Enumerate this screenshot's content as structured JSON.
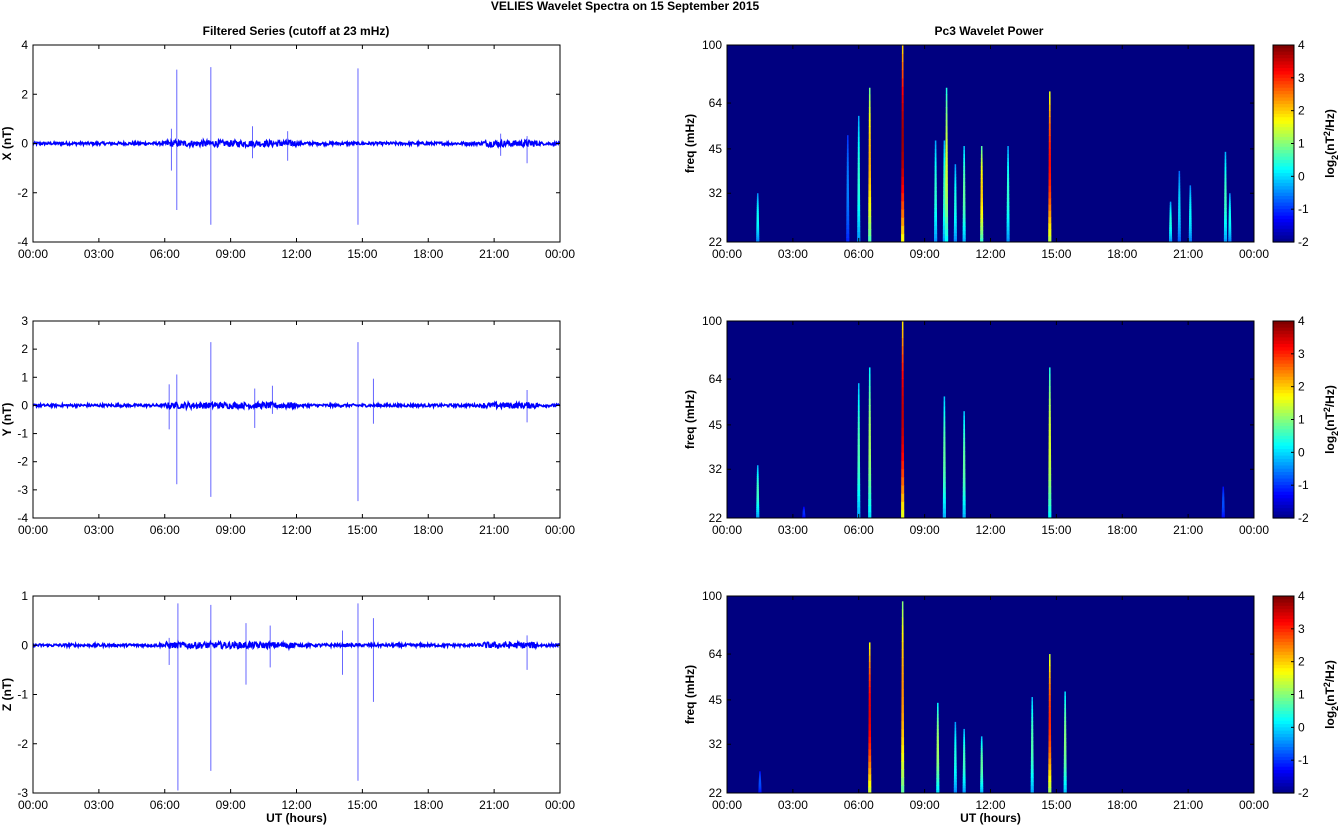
{
  "figure": {
    "title": "VELIES Wavelet Spectra on 15 September 2015",
    "left_title": "Filtered Series (cutoff at 23 mHz)",
    "right_title": "Pc3 Wavelet Power",
    "xlabel": "UT (hours)",
    "freq_label": "freq (mHz)"
  },
  "chart_data": [
    {
      "type": "line",
      "title": "Filtered Series (cutoff at 23 mHz)",
      "ylabel": "X (nT)",
      "xlabel": "",
      "xlim": [
        0,
        24
      ],
      "xticklabels": [
        "00:00",
        "03:00",
        "06:00",
        "09:00",
        "12:00",
        "15:00",
        "18:00",
        "21:00",
        "00:00"
      ],
      "ylim": [
        -4,
        4
      ],
      "yticks": [
        -4,
        -2,
        0,
        2,
        4
      ],
      "color": "#0000ff",
      "noise_amplitude": 0.06,
      "spikes": [
        {
          "t": 6.55,
          "max": 3.0,
          "min": -2.7
        },
        {
          "t": 8.1,
          "max": 3.1,
          "min": -3.3
        },
        {
          "t": 14.8,
          "max": 3.05,
          "min": -3.3
        },
        {
          "t": 6.3,
          "max": 0.6,
          "min": -1.1
        },
        {
          "t": 10.0,
          "max": 0.7,
          "min": -0.6
        },
        {
          "t": 11.6,
          "max": 0.5,
          "min": -0.7
        },
        {
          "t": 22.5,
          "max": 0.3,
          "min": -0.8
        },
        {
          "t": 21.3,
          "max": 0.4,
          "min": -0.5
        }
      ]
    },
    {
      "type": "line",
      "ylabel": "Y (nT)",
      "xlabel": "",
      "xlim": [
        0,
        24
      ],
      "xticklabels": [
        "00:00",
        "03:00",
        "06:00",
        "09:00",
        "12:00",
        "15:00",
        "18:00",
        "21:00",
        "00:00"
      ],
      "ylim": [
        -4,
        3
      ],
      "yticks": [
        -4,
        -3,
        -2,
        -1,
        0,
        1,
        2,
        3
      ],
      "color": "#0000ff",
      "noise_amplitude": 0.05,
      "spikes": [
        {
          "t": 6.55,
          "max": 1.1,
          "min": -2.8
        },
        {
          "t": 8.1,
          "max": 2.25,
          "min": -3.25
        },
        {
          "t": 14.8,
          "max": 2.25,
          "min": -3.4
        },
        {
          "t": 6.2,
          "max": 0.75,
          "min": -0.85
        },
        {
          "t": 10.1,
          "max": 0.6,
          "min": -0.8
        },
        {
          "t": 10.9,
          "max": 0.7,
          "min": -0.3
        },
        {
          "t": 15.5,
          "max": 0.95,
          "min": -0.65
        },
        {
          "t": 22.5,
          "max": 0.55,
          "min": -0.6
        }
      ]
    },
    {
      "type": "line",
      "ylabel": "Z (nT)",
      "xlabel": "UT (hours)",
      "xlim": [
        0,
        24
      ],
      "xticklabels": [
        "00:00",
        "03:00",
        "06:00",
        "09:00",
        "12:00",
        "15:00",
        "18:00",
        "21:00",
        "00:00"
      ],
      "ylim": [
        -3,
        1
      ],
      "yticks": [
        -3,
        -2,
        -1,
        0,
        1
      ],
      "color": "#0000ff",
      "noise_amplitude": 0.03,
      "spikes": [
        {
          "t": 6.6,
          "max": 0.85,
          "min": -2.95
        },
        {
          "t": 8.1,
          "max": 0.82,
          "min": -2.55
        },
        {
          "t": 14.8,
          "max": 0.85,
          "min": -2.75
        },
        {
          "t": 9.7,
          "max": 0.45,
          "min": -0.8
        },
        {
          "t": 10.8,
          "max": 0.4,
          "min": -0.45
        },
        {
          "t": 14.1,
          "max": 0.3,
          "min": -0.6
        },
        {
          "t": 15.5,
          "max": 0.55,
          "min": -1.15
        },
        {
          "t": 22.5,
          "max": 0.2,
          "min": -0.5
        },
        {
          "t": 6.2,
          "max": 0.15,
          "min": -0.4
        }
      ]
    },
    {
      "type": "heatmap",
      "title": "Pc3 Wavelet Power",
      "ylabel": "freq (mHz)",
      "xlabel": "",
      "xlim": [
        0,
        24
      ],
      "xticklabels": [
        "00:00",
        "03:00",
        "06:00",
        "09:00",
        "12:00",
        "15:00",
        "18:00",
        "21:00",
        "00:00"
      ],
      "ylim": [
        22,
        100
      ],
      "yscale": "log",
      "yticks": [
        22,
        32,
        45,
        64,
        100
      ],
      "colorbar": {
        "label": "log2(nT^2/Hz)",
        "range": [
          -2,
          4
        ],
        "ticks": [
          -2,
          -1,
          0,
          1,
          2,
          3,
          4
        ],
        "colormap": "jet"
      },
      "background": -2,
      "streaks": [
        {
          "t": 1.4,
          "fmax": 32,
          "peak": 0.3
        },
        {
          "t": 5.5,
          "fmax": 50,
          "peak": -0.5
        },
        {
          "t": 6.0,
          "fmax": 58,
          "peak": 0.5
        },
        {
          "t": 6.5,
          "fmax": 72,
          "peak": 2.2
        },
        {
          "t": 8.0,
          "fmax": 100,
          "peak": 3.8
        },
        {
          "t": 9.5,
          "fmax": 48,
          "peak": 0.5
        },
        {
          "t": 9.9,
          "fmax": 48,
          "peak": 0.6
        },
        {
          "t": 10.0,
          "fmax": 72,
          "peak": 1.5
        },
        {
          "t": 10.4,
          "fmax": 40,
          "peak": 0.4
        },
        {
          "t": 10.8,
          "fmax": 46,
          "peak": 0.8
        },
        {
          "t": 11.6,
          "fmax": 46,
          "peak": 2.0
        },
        {
          "t": 12.8,
          "fmax": 46,
          "peak": 0.5
        },
        {
          "t": 14.7,
          "fmax": 70,
          "peak": 3.2
        },
        {
          "t": 20.2,
          "fmax": 30,
          "peak": 0.4
        },
        {
          "t": 20.6,
          "fmax": 38,
          "peak": 0.0
        },
        {
          "t": 21.1,
          "fmax": 34,
          "peak": 0.2
        },
        {
          "t": 22.7,
          "fmax": 44,
          "peak": 0.6
        },
        {
          "t": 22.9,
          "fmax": 32,
          "peak": 0.3
        }
      ]
    },
    {
      "type": "heatmap",
      "ylabel": "freq (mHz)",
      "xlabel": "",
      "xlim": [
        0,
        24
      ],
      "xticklabels": [
        "00:00",
        "03:00",
        "06:00",
        "09:00",
        "12:00",
        "15:00",
        "18:00",
        "21:00",
        "00:00"
      ],
      "ylim": [
        22,
        100
      ],
      "yscale": "log",
      "yticks": [
        22,
        32,
        45,
        64,
        100
      ],
      "colorbar": {
        "label": "log2(nT^2/Hz)",
        "range": [
          -2,
          4
        ],
        "ticks": [
          -2,
          -1,
          0,
          1,
          2,
          3,
          4
        ],
        "colormap": "jet"
      },
      "background": -2,
      "streaks": [
        {
          "t": 1.4,
          "fmax": 33,
          "peak": 0.6
        },
        {
          "t": 3.5,
          "fmax": 24,
          "peak": -1.0
        },
        {
          "t": 6.0,
          "fmax": 62,
          "peak": 0.7
        },
        {
          "t": 6.5,
          "fmax": 70,
          "peak": 1.2
        },
        {
          "t": 8.0,
          "fmax": 100,
          "peak": 3.6
        },
        {
          "t": 9.9,
          "fmax": 56,
          "peak": 0.8
        },
        {
          "t": 10.8,
          "fmax": 50,
          "peak": 0.8
        },
        {
          "t": 14.7,
          "fmax": 70,
          "peak": 1.5
        },
        {
          "t": 22.6,
          "fmax": 28,
          "peak": -0.8
        }
      ]
    },
    {
      "type": "heatmap",
      "ylabel": "freq (mHz)",
      "xlabel": "UT (hours)",
      "xlim": [
        0,
        24
      ],
      "xticklabels": [
        "00:00",
        "03:00",
        "06:00",
        "09:00",
        "12:00",
        "15:00",
        "18:00",
        "21:00",
        "00:00"
      ],
      "ylim": [
        22,
        100
      ],
      "yscale": "log",
      "yticks": [
        22,
        32,
        45,
        64,
        100
      ],
      "colorbar": {
        "label": "log2(nT^2/Hz)",
        "range": [
          -2,
          4
        ],
        "ticks": [
          -2,
          -1,
          0,
          1,
          2,
          3,
          4
        ],
        "colormap": "jet"
      },
      "background": -2,
      "streaks": [
        {
          "t": 1.5,
          "fmax": 26,
          "peak": -0.8
        },
        {
          "t": 6.5,
          "fmax": 70,
          "peak": 3.4
        },
        {
          "t": 8.0,
          "fmax": 96,
          "peak": 2.4
        },
        {
          "t": 9.6,
          "fmax": 44,
          "peak": 1.2
        },
        {
          "t": 10.4,
          "fmax": 38,
          "peak": 0.4
        },
        {
          "t": 10.8,
          "fmax": 36,
          "peak": 0.6
        },
        {
          "t": 11.6,
          "fmax": 34,
          "peak": 0.8
        },
        {
          "t": 13.9,
          "fmax": 46,
          "peak": 0.7
        },
        {
          "t": 14.7,
          "fmax": 64,
          "peak": 3.0
        },
        {
          "t": 15.4,
          "fmax": 48,
          "peak": 1.0
        }
      ]
    }
  ]
}
